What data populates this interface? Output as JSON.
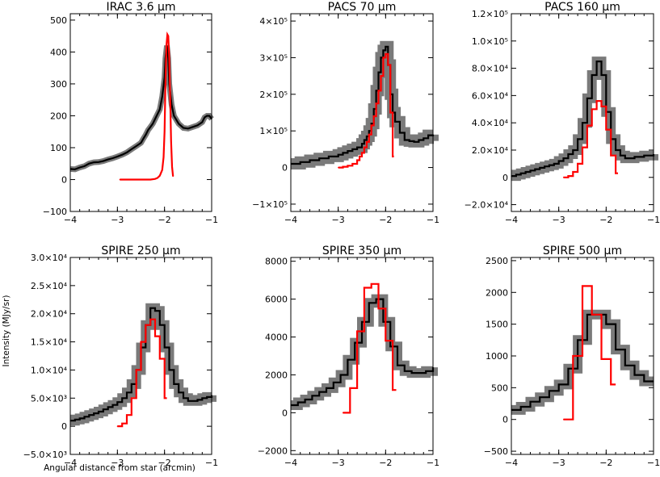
{
  "figure": {
    "ylabel": "Intensity (MJy/sr)",
    "xlabel": "Angular distance from star (arcmin)"
  },
  "chart_data": [
    {
      "type": "line",
      "title": "IRAC 3.6 μm",
      "xlim": [
        -4,
        -1
      ],
      "ylim": [
        -100,
        520
      ],
      "xticks": [
        "−4",
        "−3",
        "−2",
        "−1"
      ],
      "yticks": [
        {
          "v": -100,
          "t": "−100"
        },
        {
          "v": 0,
          "t": "0"
        },
        {
          "v": 100,
          "t": "100"
        },
        {
          "v": 200,
          "t": "200"
        },
        {
          "v": 300,
          "t": "300"
        },
        {
          "v": 400,
          "t": "400"
        },
        {
          "v": 500,
          "t": "500"
        }
      ],
      "step": false,
      "series": [
        {
          "color": "#000000",
          "band": 7,
          "x": [
            -4.0,
            -3.9,
            -3.8,
            -3.7,
            -3.6,
            -3.5,
            -3.4,
            -3.3,
            -3.2,
            -3.1,
            -3.0,
            -2.9,
            -2.8,
            -2.7,
            -2.6,
            -2.5,
            -2.45,
            -2.4,
            -2.35,
            -2.3,
            -2.25,
            -2.2,
            -2.15,
            -2.1,
            -2.05,
            -2.0,
            -1.98,
            -1.95,
            -1.92,
            -1.9,
            -1.85,
            -1.8,
            -1.7,
            -1.6,
            -1.5,
            -1.4,
            -1.3,
            -1.2,
            -1.15,
            -1.1,
            -1.05,
            -1.0
          ],
          "y": [
            33,
            32,
            38,
            42,
            50,
            54,
            55,
            58,
            63,
            67,
            72,
            78,
            85,
            95,
            105,
            115,
            128,
            140,
            155,
            165,
            175,
            190,
            205,
            220,
            260,
            320,
            380,
            420,
            380,
            300,
            235,
            200,
            175,
            162,
            160,
            165,
            170,
            180,
            195,
            200,
            200,
            190
          ]
        },
        {
          "color": "#ff0000",
          "band": 0,
          "x": [
            -2.95,
            -2.6,
            -2.3,
            -2.2,
            -2.15,
            -2.1,
            -2.05,
            -2.02,
            -2.0,
            -1.98,
            -1.96,
            -1.94,
            -1.92,
            -1.9,
            -1.88,
            -1.86,
            -1.84,
            -1.82
          ],
          "y": [
            0,
            0,
            0,
            2,
            5,
            12,
            30,
            70,
            150,
            300,
            420,
            455,
            450,
            380,
            250,
            120,
            40,
            10
          ]
        }
      ]
    },
    {
      "type": "line",
      "title": "PACS 70 μm",
      "xlim": [
        -4,
        -1
      ],
      "ylim": [
        -120000,
        420000
      ],
      "xticks": [
        "−4",
        "−3",
        "−2",
        "−1"
      ],
      "yticks": [
        {
          "v": -100000,
          "t": "−1×10⁵"
        },
        {
          "v": 0,
          "t": "0"
        },
        {
          "v": 100000,
          "t": "1×10⁵"
        },
        {
          "v": 200000,
          "t": "2×10⁵"
        },
        {
          "v": 300000,
          "t": "3×10⁵"
        },
        {
          "v": 400000,
          "t": "4×10⁵"
        }
      ],
      "step": true,
      "series": [
        {
          "color": "#000000",
          "band": 14,
          "x": [
            -4.0,
            -3.8,
            -3.6,
            -3.4,
            -3.2,
            -3.0,
            -2.9,
            -2.8,
            -2.7,
            -2.6,
            -2.5,
            -2.45,
            -2.4,
            -2.35,
            -2.3,
            -2.25,
            -2.2,
            -2.15,
            -2.1,
            -2.05,
            -2.0,
            -1.95,
            -1.9,
            -1.85,
            -1.8,
            -1.7,
            -1.6,
            -1.5,
            -1.4,
            -1.3,
            -1.2,
            -1.1,
            -1.0
          ],
          "y": [
            10000,
            15000,
            20000,
            25000,
            30000,
            35000,
            40000,
            45000,
            50000,
            55000,
            65000,
            75000,
            85000,
            100000,
            120000,
            160000,
            210000,
            260000,
            300000,
            320000,
            330000,
            280000,
            200000,
            150000,
            125000,
            95000,
            75000,
            72000,
            70000,
            75000,
            80000,
            88000,
            90000
          ]
        },
        {
          "color": "#ff0000",
          "band": 0,
          "x": [
            -3.0,
            -2.9,
            -2.8,
            -2.7,
            -2.6,
            -2.55,
            -2.5,
            -2.45,
            -2.4,
            -2.35,
            -2.3,
            -2.25,
            -2.2,
            -2.15,
            -2.1,
            -2.05,
            -2.0,
            -1.95,
            -1.9,
            -1.85
          ],
          "y": [
            0,
            2000,
            5000,
            10000,
            20000,
            30000,
            40000,
            55000,
            70000,
            90000,
            115000,
            140000,
            175000,
            210000,
            250000,
            300000,
            310000,
            280000,
            150000,
            30000
          ]
        }
      ]
    },
    {
      "type": "line",
      "title": "PACS 160 μm",
      "xlim": [
        -4,
        -1
      ],
      "ylim": [
        -25000,
        120000
      ],
      "xticks": [
        "−4",
        "−3",
        "−2",
        "−1"
      ],
      "yticks": [
        {
          "v": -20000,
          "t": "−2.0×10⁴"
        },
        {
          "v": 0,
          "t": "0"
        },
        {
          "v": 20000,
          "t": "2.0×10⁴"
        },
        {
          "v": 40000,
          "t": "4.0×10⁴"
        },
        {
          "v": 60000,
          "t": "6.0×10⁴"
        },
        {
          "v": 80000,
          "t": "8.0×10⁴"
        },
        {
          "v": 100000,
          "t": "1.0×10⁵"
        },
        {
          "v": 120000,
          "t": "1.2×10⁵"
        }
      ],
      "step": true,
      "series": [
        {
          "color": "#000000",
          "band": 12,
          "x": [
            -4.0,
            -3.9,
            -3.8,
            -3.7,
            -3.6,
            -3.5,
            -3.4,
            -3.3,
            -3.2,
            -3.1,
            -3.0,
            -2.9,
            -2.8,
            -2.7,
            -2.6,
            -2.5,
            -2.4,
            -2.3,
            -2.2,
            -2.1,
            -2.0,
            -1.9,
            -1.8,
            -1.7,
            -1.6,
            -1.5,
            -1.4,
            -1.3,
            -1.2,
            -1.1,
            -1.0
          ],
          "y": [
            1000,
            2000,
            3000,
            4000,
            5000,
            6000,
            7000,
            8000,
            9000,
            10000,
            12000,
            14000,
            17000,
            20000,
            28000,
            40000,
            58000,
            75000,
            85000,
            75000,
            48000,
            28000,
            20000,
            16000,
            14000,
            14000,
            15000,
            15000,
            16000,
            16000,
            17000
          ]
        },
        {
          "color": "#ff0000",
          "band": 0,
          "x": [
            -2.9,
            -2.8,
            -2.7,
            -2.6,
            -2.5,
            -2.4,
            -2.3,
            -2.2,
            -2.1,
            -2.0,
            -1.9,
            -1.8
          ],
          "y": [
            0,
            1000,
            4000,
            10000,
            22000,
            38000,
            50000,
            56000,
            52000,
            35000,
            16000,
            3000
          ]
        }
      ]
    },
    {
      "type": "line",
      "title": "SPIRE 250 μm",
      "xlim": [
        -4,
        -1
      ],
      "ylim": [
        -5000,
        30000
      ],
      "xticks": [
        "−4",
        "−3",
        "−2",
        "−1"
      ],
      "yticks": [
        {
          "v": -5000,
          "t": "−5.0×10³"
        },
        {
          "v": 0,
          "t": "0"
        },
        {
          "v": 5000,
          "t": "5.0×10³"
        },
        {
          "v": 10000,
          "t": "1.0×10⁴"
        },
        {
          "v": 15000,
          "t": "1.5×10⁴"
        },
        {
          "v": 20000,
          "t": "2.0×10⁴"
        },
        {
          "v": 25000,
          "t": "2.5×10⁴"
        },
        {
          "v": 30000,
          "t": "3.0×10⁴"
        }
      ],
      "step": true,
      "series": [
        {
          "color": "#000000",
          "band": 12,
          "x": [
            -4.0,
            -3.9,
            -3.8,
            -3.7,
            -3.6,
            -3.5,
            -3.4,
            -3.3,
            -3.2,
            -3.1,
            -3.0,
            -2.9,
            -2.8,
            -2.7,
            -2.6,
            -2.5,
            -2.4,
            -2.3,
            -2.2,
            -2.1,
            -2.0,
            -1.9,
            -1.8,
            -1.7,
            -1.6,
            -1.5,
            -1.4,
            -1.3,
            -1.2,
            -1.1,
            -1.0
          ],
          "y": [
            1000,
            1200,
            1400,
            1700,
            2000,
            2300,
            2600,
            3000,
            3400,
            3800,
            4300,
            5000,
            6000,
            7500,
            10000,
            14000,
            18000,
            21000,
            20500,
            18000,
            14000,
            10000,
            7500,
            6000,
            5000,
            4500,
            4500,
            4700,
            5000,
            5200,
            5500
          ]
        },
        {
          "color": "#ff0000",
          "band": 0,
          "x": [
            -3.0,
            -2.9,
            -2.8,
            -2.7,
            -2.6,
            -2.5,
            -2.4,
            -2.3,
            -2.2,
            -2.1,
            -2.0
          ],
          "y": [
            0,
            500,
            2000,
            5000,
            10000,
            15000,
            18000,
            19000,
            16000,
            12000,
            5000
          ]
        }
      ]
    },
    {
      "type": "line",
      "title": "SPIRE 350 μm",
      "xlim": [
        -4,
        -1
      ],
      "ylim": [
        -2200,
        8200
      ],
      "xticks": [
        "−4",
        "−3",
        "−2",
        "−1"
      ],
      "yticks": [
        {
          "v": -2000,
          "t": "−2000"
        },
        {
          "v": 0,
          "t": "0"
        },
        {
          "v": 2000,
          "t": "2000"
        },
        {
          "v": 4000,
          "t": "4000"
        },
        {
          "v": 6000,
          "t": "6000"
        },
        {
          "v": 8000,
          "t": "8000"
        }
      ],
      "step": true,
      "series": [
        {
          "color": "#000000",
          "band": 12,
          "x": [
            -4.0,
            -3.85,
            -3.7,
            -3.55,
            -3.4,
            -3.25,
            -3.1,
            -2.95,
            -2.8,
            -2.65,
            -2.5,
            -2.35,
            -2.2,
            -2.05,
            -1.9,
            -1.75,
            -1.6,
            -1.45,
            -1.3,
            -1.15,
            -1.0
          ],
          "y": [
            400,
            550,
            700,
            900,
            1100,
            1300,
            1600,
            2000,
            2800,
            3700,
            4800,
            5800,
            6000,
            4800,
            3500,
            2500,
            2200,
            2100,
            2100,
            2200,
            2400
          ]
        },
        {
          "color": "#ff0000",
          "band": 0,
          "x": [
            -2.9,
            -2.75,
            -2.6,
            -2.45,
            -2.3,
            -2.15,
            -2.0,
            -1.85
          ],
          "y": [
            0,
            1300,
            4300,
            6600,
            6800,
            5500,
            3800,
            1200
          ]
        }
      ]
    },
    {
      "type": "line",
      "title": "SPIRE 500 μm",
      "xlim": [
        -4,
        -1
      ],
      "ylim": [
        -550,
        2550
      ],
      "xticks": [
        "−4",
        "−3",
        "−2",
        "−1"
      ],
      "yticks": [
        {
          "v": -500,
          "t": "−500"
        },
        {
          "v": 0,
          "t": "0"
        },
        {
          "v": 500,
          "t": "500"
        },
        {
          "v": 1000,
          "t": "1000"
        },
        {
          "v": 1500,
          "t": "1500"
        },
        {
          "v": 2000,
          "t": "2000"
        },
        {
          "v": 2500,
          "t": "2500"
        }
      ],
      "step": true,
      "series": [
        {
          "color": "#000000",
          "band": 12,
          "x": [
            -4.0,
            -3.8,
            -3.6,
            -3.4,
            -3.2,
            -3.0,
            -2.8,
            -2.6,
            -2.4,
            -2.2,
            -2.0,
            -1.8,
            -1.6,
            -1.4,
            -1.2,
            -1.0
          ],
          "y": [
            150,
            200,
            280,
            350,
            450,
            550,
            800,
            1250,
            1650,
            1650,
            1500,
            1100,
            850,
            700,
            600,
            600
          ]
        },
        {
          "color": "#ff0000",
          "band": 0,
          "x": [
            -2.9,
            -2.7,
            -2.5,
            -2.3,
            -2.1,
            -1.9
          ],
          "y": [
            0,
            1000,
            2100,
            1650,
            950,
            550
          ]
        }
      ]
    }
  ]
}
